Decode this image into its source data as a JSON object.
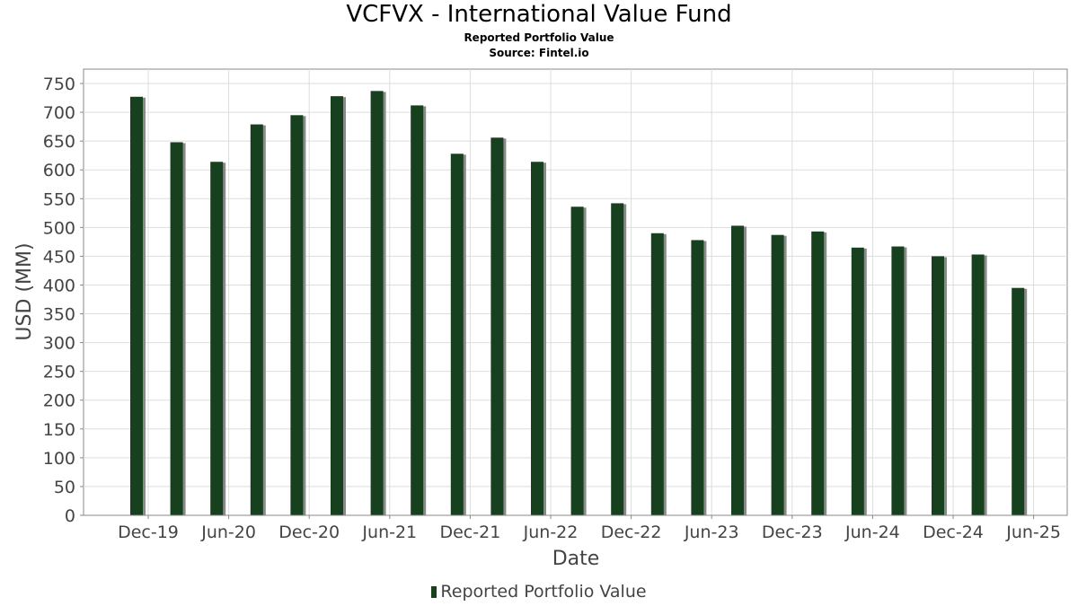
{
  "chart_data": {
    "type": "bar",
    "title": "VCFVX - International Value Fund",
    "subtitle": "Reported Portfolio Value",
    "source": "Source: Fintel.io",
    "xlabel": "Date",
    "ylabel": "USD (MM)",
    "ylim": [
      0,
      775
    ],
    "yticks": [
      0,
      50,
      100,
      150,
      200,
      250,
      300,
      350,
      400,
      450,
      500,
      550,
      600,
      650,
      700,
      750
    ],
    "xtick_labels": [
      "Dec-19",
      "Jun-20",
      "Dec-20",
      "Jun-21",
      "Dec-21",
      "Jun-22",
      "Dec-22",
      "Jun-23",
      "Dec-23",
      "Jun-24",
      "Dec-24",
      "Jun-25"
    ],
    "grid": true,
    "legend_position": "bottom",
    "bar_color": "#17401f",
    "series": [
      {
        "name": "Reported Portfolio Value",
        "values": [
          727,
          648,
          614,
          679,
          695,
          728,
          737,
          712,
          628,
          656,
          614,
          536,
          542,
          490,
          478,
          503,
          487,
          493,
          465,
          467,
          450,
          453,
          395
        ]
      }
    ]
  }
}
